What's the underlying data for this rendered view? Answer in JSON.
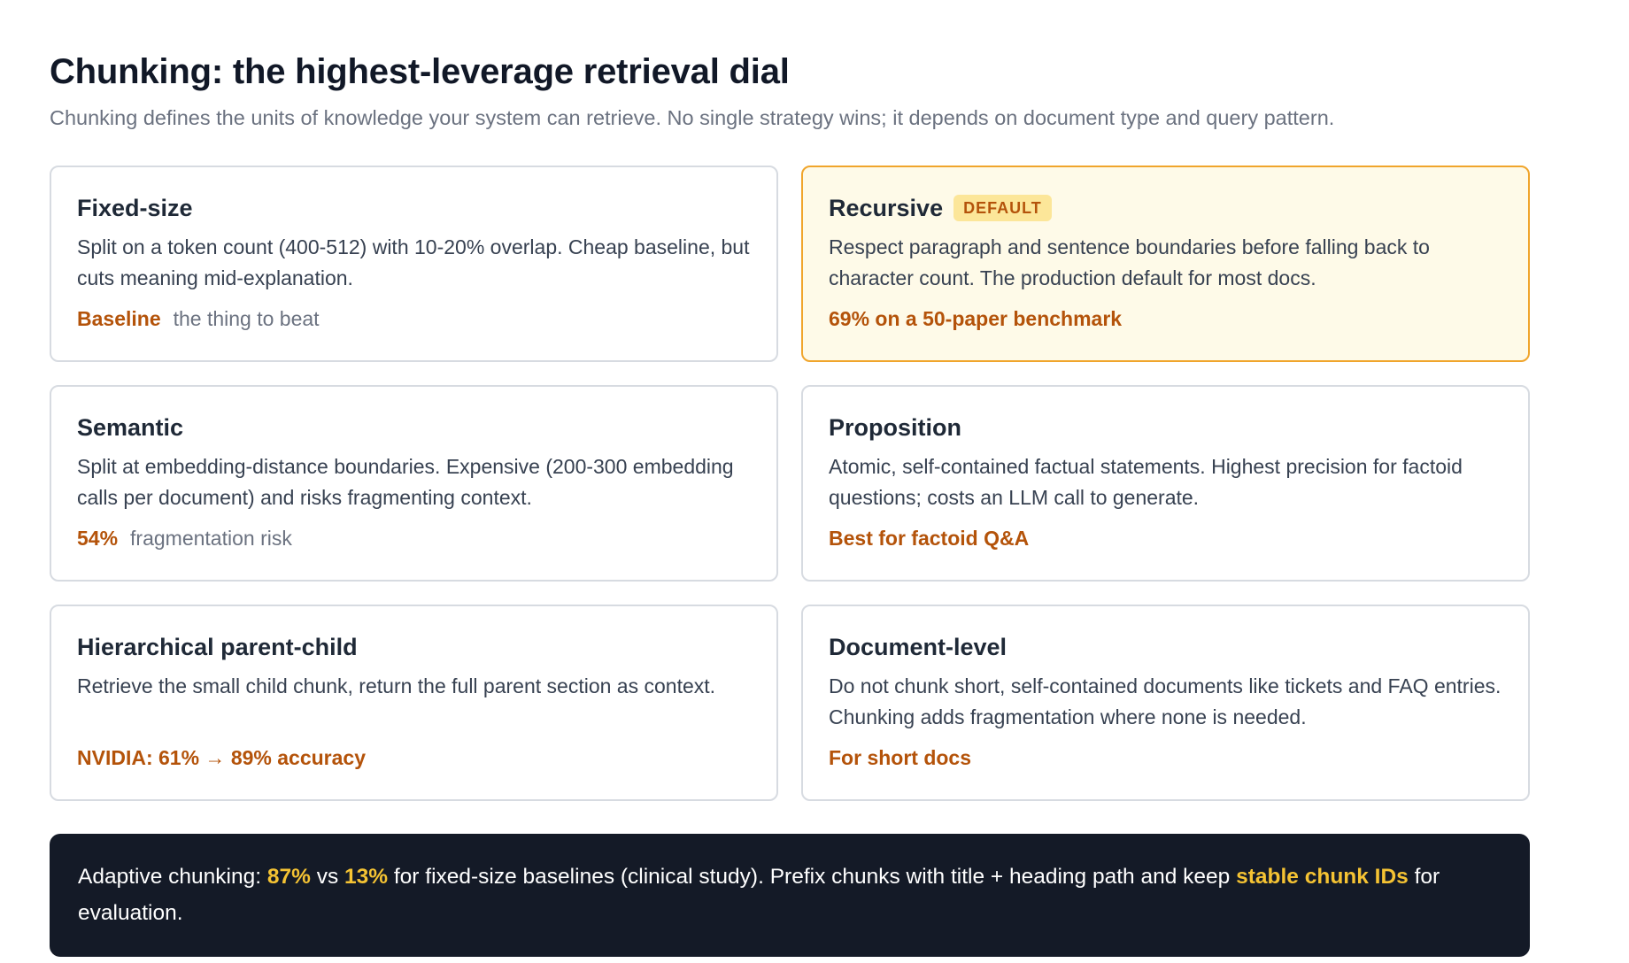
{
  "title": "Chunking: the highest-leverage retrieval dial",
  "subtitle": "Chunking defines the units of knowledge your system can retrieve. No single strategy wins; it depends on document type and query pattern.",
  "cards": [
    {
      "title": "Fixed-size",
      "badge": "",
      "description": "Split on a token count (400-512) with 10-20% overlap. Cheap baseline, but cuts meaning mid-explanation.",
      "meta_strong": "Baseline",
      "meta_note": "the thing to beat"
    },
    {
      "title": "Recursive",
      "badge": "DEFAULT",
      "description": "Respect paragraph and sentence boundaries before falling back to character count. The production default for most docs.",
      "meta_strong": "69% on a 50-paper benchmark",
      "meta_note": ""
    },
    {
      "title": "Semantic",
      "badge": "",
      "description": "Split at embedding-distance boundaries. Expensive (200-300 embedding calls per document) and risks fragmenting context.",
      "meta_strong": "54%",
      "meta_note": "fragmentation risk"
    },
    {
      "title": "Proposition",
      "badge": "",
      "description": "Atomic, self-contained factual statements. Highest precision for factoid questions; costs an LLM call to generate.",
      "meta_strong": "Best for factoid Q&A",
      "meta_note": ""
    },
    {
      "title": "Hierarchical parent-child",
      "badge": "",
      "description": "Retrieve the small child chunk, return the full parent section as context.",
      "meta_strong": "NVIDIA: 61% → 89% accuracy",
      "meta_note": ""
    },
    {
      "title": "Document-level",
      "badge": "",
      "description": "Do not chunk short, self-contained documents like tickets and FAQ entries. Chunking adds fragmentation where none is needed.",
      "meta_strong": "For short docs",
      "meta_note": ""
    }
  ],
  "callout": {
    "t1": "Adaptive chunking: ",
    "h1": "87%",
    "t2": " vs ",
    "h2": "13%",
    "t3": " for fixed-size baselines (clinical study). Prefix chunks with title + heading path and keep ",
    "h3": "stable chunk IDs",
    "t4": " for evaluation."
  },
  "colors": {
    "accent": "#b4530a",
    "highlight_border": "#f0a52c",
    "highlight_bg": "#fefae8",
    "callout_bg": "#141a27",
    "callout_highlight": "#f5c333"
  }
}
